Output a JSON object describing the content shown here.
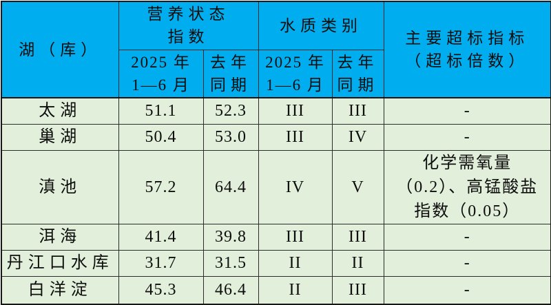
{
  "colors": {
    "header_bg": "#00AEEF",
    "row_bg": "#E2EFDA",
    "border": "#2b2b2b",
    "text": "#0d0d0d"
  },
  "table": {
    "header": {
      "lake": "湖（库）",
      "nutrition_group": "营养状态\n指数",
      "water_group": "水质类别",
      "exceed": "主要超标指标\n（超标倍数）",
      "nutrition_period_current": "2025 年\n1—6 月",
      "nutrition_period_last": "去年\n同期",
      "water_period_current": "2025 年\n1—6 月",
      "water_period_last": "去年\n同期"
    },
    "rows": [
      {
        "name": "太湖",
        "tsi_2025": "51.1",
        "tsi_last": "52.3",
        "wq_2025": "III",
        "wq_last": "III",
        "exceed": "-"
      },
      {
        "name": "巢湖",
        "tsi_2025": "50.4",
        "tsi_last": "53.0",
        "wq_2025": "III",
        "wq_last": "IV",
        "exceed": "-"
      },
      {
        "name": "滇池",
        "tsi_2025": "57.2",
        "tsi_last": "64.4",
        "wq_2025": "IV",
        "wq_last": "V",
        "exceed": "化学需氧量\n（0.2）、高锰酸盐\n指数（0.05）"
      },
      {
        "name": "洱海",
        "tsi_2025": "41.4",
        "tsi_last": "39.8",
        "wq_2025": "III",
        "wq_last": "III",
        "exceed": "-"
      },
      {
        "name": "丹江口水库",
        "tsi_2025": "31.7",
        "tsi_last": "31.5",
        "wq_2025": "II",
        "wq_last": "II",
        "exceed": "-"
      },
      {
        "name": "白洋淀",
        "tsi_2025": "45.3",
        "tsi_last": "46.4",
        "wq_2025": "II",
        "wq_last": "III",
        "exceed": "-"
      }
    ]
  }
}
